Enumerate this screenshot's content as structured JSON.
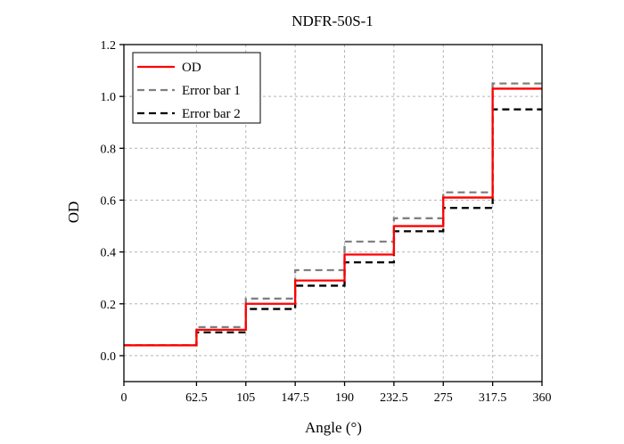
{
  "chart_data": {
    "type": "line",
    "title": "NDFR-50S-1",
    "xlabel": "Angle (°)",
    "ylabel": "OD",
    "xlim": [
      0,
      360
    ],
    "ylim": [
      -0.1,
      1.2
    ],
    "xticks": [
      "0",
      "62.5",
      "105",
      "147.5",
      "190",
      "232.5",
      "275",
      "317.5",
      "360"
    ],
    "xtick_values": [
      0,
      62.5,
      105,
      147.5,
      190,
      232.5,
      275,
      317.5,
      360
    ],
    "yticks": [
      "0.0",
      "0.2",
      "0.4",
      "0.6",
      "0.8",
      "1.0",
      "1.2"
    ],
    "ytick_values": [
      0,
      0.2,
      0.4,
      0.6,
      0.8,
      1.0,
      1.2
    ],
    "grid": true,
    "legend_position": "top-left",
    "step_edges": [
      0,
      62.5,
      105,
      147.5,
      190,
      232.5,
      275,
      317.5,
      360
    ],
    "series": [
      {
        "name": "OD",
        "color": "#ff0000",
        "dash": "solid",
        "values": [
          0.04,
          0.1,
          0.2,
          0.29,
          0.39,
          0.5,
          0.61,
          1.03
        ]
      },
      {
        "name": "Error bar 1",
        "color": "#808080",
        "dash": "dashed",
        "values": [
          0.04,
          0.11,
          0.22,
          0.33,
          0.44,
          0.53,
          0.63,
          1.05
        ]
      },
      {
        "name": "Error bar 2",
        "color": "#000000",
        "dash": "dashed",
        "values": [
          0.04,
          0.09,
          0.18,
          0.27,
          0.36,
          0.48,
          0.57,
          0.95
        ]
      }
    ]
  }
}
